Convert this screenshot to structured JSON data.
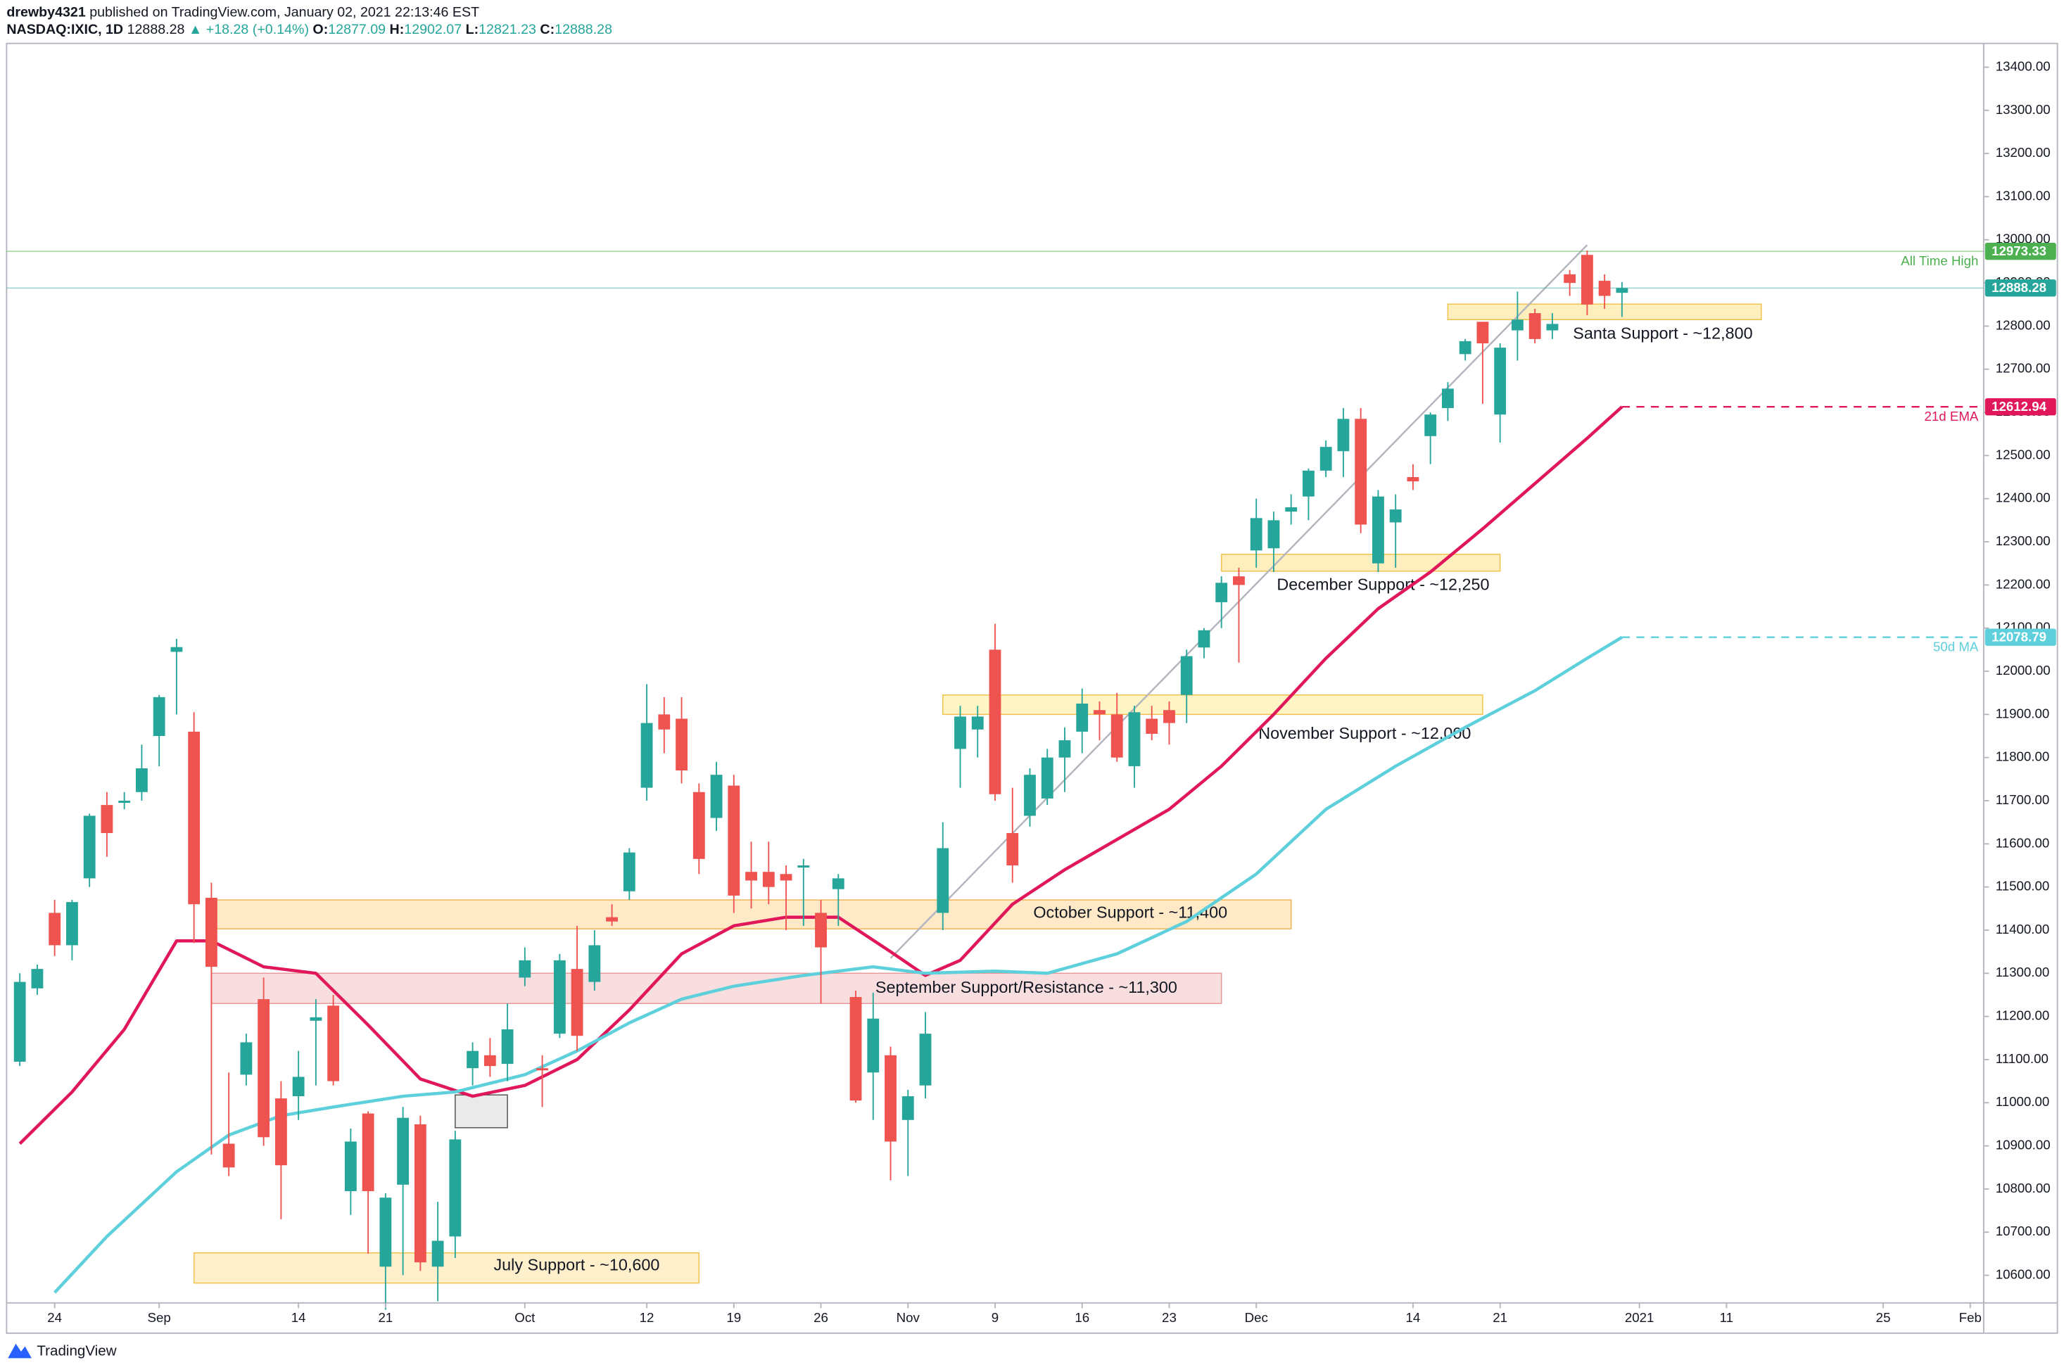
{
  "header": {
    "author": "drewby4321",
    "published": "published on TradingView.com, January 02, 2021 22:13:46 EST",
    "symbol": "NASDAQ:IXIC, 1D",
    "change": "+18.28 (+0.14%)",
    "open_label": "O:",
    "high_label": "H:",
    "low_label": "L:",
    "close_label": "C:"
  },
  "footer": {
    "brand": "TradingView"
  },
  "chart_data": {
    "type": "candlestick",
    "up_color": "#26a69a",
    "down_color": "#ef5350",
    "grid": false,
    "ylim": [
      10536,
      13449
    ],
    "yticks": [
      {
        "value": 10600,
        "label": "10600.00"
      },
      {
        "value": 10700,
        "label": "10700.00"
      },
      {
        "value": 10800,
        "label": "10800.00"
      },
      {
        "value": 10900,
        "label": "10900.00"
      },
      {
        "value": 11000,
        "label": "11000.00"
      },
      {
        "value": 11100,
        "label": "11100.00"
      },
      {
        "value": 11200,
        "label": "11200.00"
      },
      {
        "value": 11300,
        "label": "11300.00"
      },
      {
        "value": 11400,
        "label": "11400.00"
      },
      {
        "value": 11500,
        "label": "11500.00"
      },
      {
        "value": 11600,
        "label": "11600.00"
      },
      {
        "value": 11700,
        "label": "11700.00"
      },
      {
        "value": 11800,
        "label": "11800.00"
      },
      {
        "value": 11900,
        "label": "11900.00"
      },
      {
        "value": 12000,
        "label": "12000.00"
      },
      {
        "value": 12100,
        "label": "12100.00"
      },
      {
        "value": 12200,
        "label": "12200.00"
      },
      {
        "value": 12300,
        "label": "12300.00"
      },
      {
        "value": 12400,
        "label": "12400.00"
      },
      {
        "value": 12500,
        "label": "12500.00"
      },
      {
        "value": 12600,
        "label": "12600.00"
      },
      {
        "value": 12700,
        "label": "12700.00"
      },
      {
        "value": 12800,
        "label": "12800.00"
      },
      {
        "value": 12900,
        "label": "12900.00"
      },
      {
        "value": 13000,
        "label": "13000.00"
      },
      {
        "value": 13100,
        "label": "13100.00"
      },
      {
        "value": 13200,
        "label": "13200.00"
      },
      {
        "value": 13300,
        "label": "13300.00"
      },
      {
        "value": 13400,
        "label": "13400.00"
      }
    ],
    "xlim": [
      -0.76,
      112.77
    ],
    "xticks": [
      {
        "value": 2,
        "label": "24"
      },
      {
        "value": 8,
        "label": "Sep"
      },
      {
        "value": 16,
        "label": "14"
      },
      {
        "value": 21,
        "label": "21"
      },
      {
        "value": 29,
        "label": "Oct"
      },
      {
        "value": 36,
        "label": "12"
      },
      {
        "value": 41,
        "label": "19"
      },
      {
        "value": 46,
        "label": "26"
      },
      {
        "value": 51,
        "label": "Nov"
      },
      {
        "value": 56,
        "label": "9"
      },
      {
        "value": 61,
        "label": "16"
      },
      {
        "value": 66,
        "label": "23"
      },
      {
        "value": 71,
        "label": "Dec"
      },
      {
        "value": 80,
        "label": "14"
      },
      {
        "value": 85,
        "label": "21"
      },
      {
        "value": 93,
        "label": "2021"
      },
      {
        "value": 98,
        "label": "11"
      },
      {
        "value": 107,
        "label": "25"
      },
      {
        "value": 112,
        "label": "Feb"
      }
    ],
    "candles": {
      "open": [
        11095,
        11265,
        11440,
        11365,
        11520,
        11690,
        11695,
        11720,
        11850,
        12045,
        11860,
        11475,
        10905,
        11065,
        11240,
        11010,
        11015,
        11190,
        11225,
        10795,
        10975,
        10620,
        10810,
        10950,
        10620,
        10690,
        11080,
        11110,
        11090,
        11290,
        11080,
        11160,
        11310,
        11280,
        11430,
        11490,
        11730,
        11900,
        11890,
        11720,
        11660,
        11735,
        11535,
        11535,
        11530,
        11545,
        11440,
        11495,
        11245,
        11070,
        11110,
        10960,
        11040,
        11440,
        11820,
        11865,
        12050,
        11625,
        11665,
        11705,
        11800,
        11860,
        11910,
        11900,
        11780,
        11890,
        11910,
        11945,
        12055,
        12160,
        12220,
        12280,
        12285,
        12370,
        12405,
        12465,
        12510,
        12585,
        12250,
        12345,
        12450,
        12545,
        12610,
        12735,
        12810,
        12595,
        12790,
        12830,
        12790,
        12920,
        12965,
        12905,
        12877.09
      ],
      "high": [
        11300,
        11320,
        11470,
        11470,
        11670,
        11720,
        11720,
        11830,
        11945,
        12075,
        11905,
        11510,
        11070,
        11160,
        11290,
        11050,
        11120,
        11240,
        11250,
        10940,
        10980,
        10790,
        10990,
        10970,
        10770,
        10935,
        11140,
        11150,
        11230,
        11360,
        11110,
        11345,
        11410,
        11400,
        11460,
        11590,
        11970,
        11940,
        11940,
        11740,
        11790,
        11760,
        11605,
        11605,
        11550,
        11565,
        11470,
        11530,
        11260,
        11255,
        11130,
        11030,
        11210,
        11650,
        11920,
        11920,
        12110,
        11730,
        11775,
        11820,
        11870,
        11960,
        11930,
        11950,
        11920,
        11920,
        11930,
        12050,
        12100,
        12220,
        12240,
        12400,
        12370,
        12410,
        12470,
        12535,
        12610,
        12610,
        12420,
        12410,
        12480,
        12600,
        12670,
        12770,
        12810,
        12760,
        12880,
        12840,
        12830,
        12930,
        12975,
        12920,
        12902.07
      ],
      "low": [
        11085,
        11250,
        11340,
        11330,
        11500,
        11570,
        11680,
        11700,
        11780,
        11900,
        11370,
        10880,
        10830,
        11040,
        10900,
        10730,
        10960,
        11040,
        11040,
        10740,
        10650,
        10520,
        10600,
        10610,
        10540,
        10640,
        11040,
        11060,
        11050,
        11270,
        10990,
        11150,
        11120,
        11260,
        11410,
        11470,
        11700,
        11810,
        11740,
        11530,
        11630,
        11440,
        11450,
        11460,
        11400,
        11410,
        11230,
        11410,
        11000,
        10960,
        10820,
        10830,
        11010,
        11400,
        11730,
        11800,
        11700,
        11510,
        11640,
        11690,
        11720,
        11810,
        11840,
        11790,
        11730,
        11840,
        11830,
        11880,
        12030,
        12100,
        12020,
        12240,
        12230,
        12340,
        12350,
        12450,
        12450,
        12320,
        12230,
        12240,
        12420,
        12480,
        12580,
        12720,
        12620,
        12530,
        12720,
        12760,
        12770,
        12870,
        12825,
        12840,
        12821.23
      ],
      "close": [
        11280,
        11310,
        11365,
        11465,
        11665,
        11625,
        11700,
        11775,
        11940,
        12056,
        11460,
        11315,
        10850,
        11140,
        10920,
        10855,
        11060,
        11198,
        11050,
        10910,
        10795,
        10780,
        10965,
        10630,
        10680,
        10915,
        11120,
        11085,
        11170,
        11330,
        11075,
        11330,
        11155,
        11365,
        11420,
        11580,
        11880,
        11865,
        11770,
        11565,
        11760,
        11480,
        11515,
        11500,
        11515,
        11550,
        11360,
        11520,
        11005,
        11195,
        10910,
        11015,
        11160,
        11590,
        11895,
        11895,
        11715,
        11550,
        11760,
        11800,
        11840,
        11925,
        11900,
        11800,
        11905,
        11855,
        11880,
        12035,
        12095,
        12205,
        12200,
        12355,
        12350,
        12380,
        12465,
        12520,
        12585,
        12340,
        12405,
        12375,
        12440,
        12595,
        12655,
        12765,
        12760,
        12750,
        12815,
        12770,
        12805,
        12900,
        12850,
        12870,
        12888.28
      ]
    },
    "lines": [
      {
        "name": "21d EMA",
        "color": "#e0185a",
        "x": [
          0,
          3,
          6,
          9,
          11,
          14,
          17,
          20,
          23,
          26,
          29,
          32,
          35,
          38,
          41,
          44,
          47,
          50,
          52,
          54,
          57,
          60,
          63,
          66,
          69,
          72,
          75,
          78,
          81,
          84,
          87,
          90,
          92
        ],
        "values": [
          10905,
          11025,
          11170,
          11375,
          11375,
          11315,
          11300,
          11180,
          11055,
          11015,
          11040,
          11100,
          11215,
          11345,
          11410,
          11430,
          11430,
          11350,
          11295,
          11330,
          11460,
          11540,
          11610,
          11680,
          11780,
          11900,
          12030,
          12145,
          12230,
          12330,
          12435,
          12540,
          12612.94
        ]
      },
      {
        "name": "50d MA",
        "color": "#5dd0dc",
        "x": [
          2,
          5,
          9,
          12,
          15,
          18,
          22,
          25,
          29,
          32,
          35,
          38,
          41,
          45,
          49,
          52,
          56,
          59,
          63,
          67,
          71,
          75,
          79,
          83,
          87,
          90,
          92
        ],
        "values": [
          10560,
          10690,
          10840,
          10925,
          10970,
          10990,
          11015,
          11025,
          11065,
          11120,
          11185,
          11240,
          11270,
          11295,
          11315,
          11300,
          11305,
          11300,
          11345,
          11420,
          11530,
          11680,
          11780,
          11870,
          11955,
          12030,
          12078.79
        ]
      }
    ],
    "levels": [
      {
        "name": "All Time High",
        "value": 12973.33,
        "color": "#4caf50"
      }
    ],
    "trendline": {
      "color": "#b2b5be",
      "x": [
        50,
        90
      ],
      "values": [
        11335,
        12988
      ]
    },
    "zones": [
      {
        "name": "Santa Support - ~12,800",
        "x": [
          82,
          100
        ],
        "y": [
          12815,
          12851
        ],
        "color": "#ffe9a8",
        "border": "#f2c14e"
      },
      {
        "name": "December Support - ~12,250",
        "x": [
          69,
          85
        ],
        "y": [
          12232,
          12271
        ],
        "color": "#ffe9a8",
        "border": "#f2c14e"
      },
      {
        "name": "November Support - ~12,000",
        "x": [
          53,
          84
        ],
        "y": [
          11900,
          11945
        ],
        "color": "#fff1b0",
        "border": "#f2c14e"
      },
      {
        "name": "October Support - ~11,400",
        "x": [
          11,
          73
        ],
        "y": [
          11403,
          11470
        ],
        "color": "#ffe2b4",
        "border": "#f0b35a"
      },
      {
        "name": "September Support/Resistance - ~11,300",
        "x": [
          11,
          69
        ],
        "y": [
          11230,
          11300
        ],
        "color": "#f6d3d3",
        "border": "#e89a9a"
      },
      {
        "name": "July Support - ~10,600",
        "x": [
          10,
          39
        ],
        "y": [
          10582,
          10652
        ],
        "color": "#ffe9b8",
        "border": "#f2c14e"
      },
      {
        "x": [
          25,
          28
        ],
        "y": [
          10942,
          11018
        ],
        "color": "#e3e3e3",
        "border": "#555555"
      }
    ]
  }
}
